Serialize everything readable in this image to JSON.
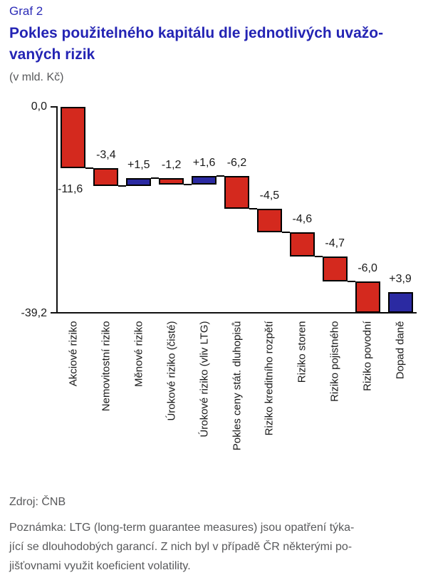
{
  "header": {
    "graf_label": "Graf 2",
    "title_lines": [
      "Pokles použitelného kapitálu dle jednotlivých uvažo-",
      "vaných rizik"
    ],
    "subtitle": "(v mld. Kč)"
  },
  "chart_data": {
    "type": "bar",
    "subtype": "waterfall",
    "title": "Pokles použitelného kapitálu dle jednotlivých uvažovaných rizik",
    "unit": "v mld. Kč",
    "categories": [
      "Akciové riziko",
      "Nemovitostní riziko",
      "Měnové riziko",
      "Úrokové riziko (čisté)",
      "Úrokové riziko (vliv LTG)",
      "Pokles ceny stát. dluhopisů",
      "Riziko kreditního rozpětí",
      "Riziko storen",
      "Riziko pojistného",
      "Riziko povodní",
      "Dopad daně"
    ],
    "values": [
      -11.6,
      -3.4,
      1.5,
      -1.2,
      1.6,
      -6.2,
      -4.5,
      -4.6,
      -4.7,
      -6.0,
      3.9
    ],
    "value_labels": [
      "-11,6",
      "-3,4",
      "+1,5",
      "-1,2",
      "+1,6",
      "-6,2",
      "-4,5",
      "-4,6",
      "-4,7",
      "-6,0",
      "+3,9"
    ],
    "start_value": 0,
    "ylim": [
      -39.2,
      0
    ],
    "ytick_top": "0,0",
    "ytick_bottom": "-39,2",
    "grid": "off",
    "legend": "none",
    "colors": {
      "decrease": "#d4291e",
      "increase": "#2b2aa2",
      "bar_border": "#000000",
      "axis": "#111111",
      "title_blue": "#2424b4",
      "muted_gray": "#58595b"
    }
  },
  "footer": {
    "source": "Zdroj: ČNB",
    "note_lines": [
      "Poznámka: LTG (long-term guarantee measures) jsou opatření týka-",
      "jící se dlouhodobých garancí. Z nich byl v případě ČR některými po-",
      "jišťovnami využit koeficient volatility."
    ]
  }
}
